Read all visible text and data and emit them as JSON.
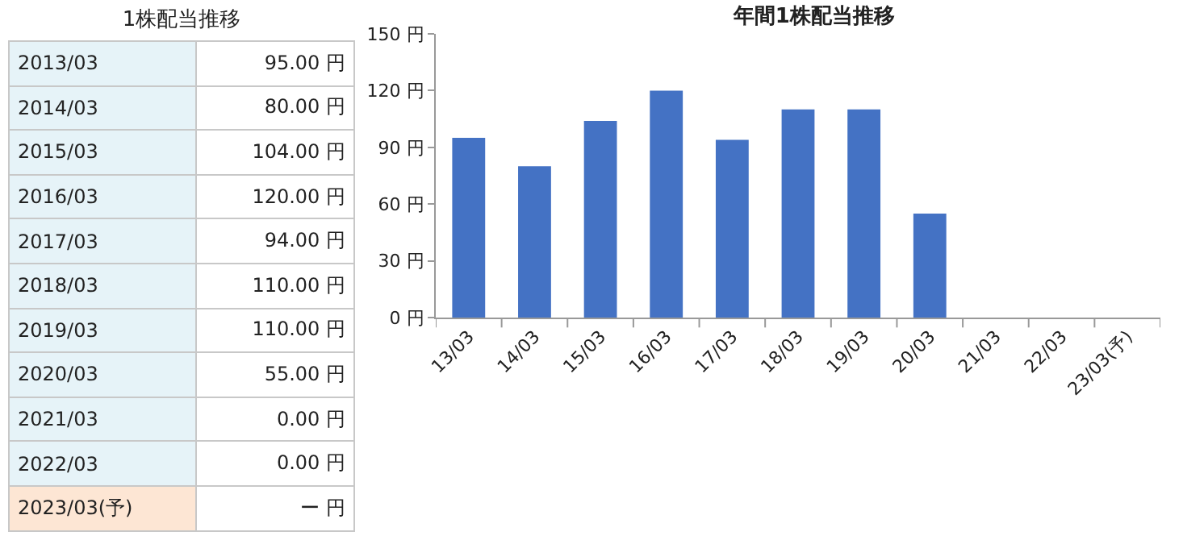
{
  "chart_data": [
    {
      "type": "other",
      "title": "1株配当推移",
      "categories": [
        "2013/03",
        "2014/03",
        "2015/03",
        "2016/03",
        "2017/03",
        "2018/03",
        "2019/03",
        "2020/03",
        "2021/03",
        "2022/03",
        "2023/03(予)"
      ],
      "values": [
        95,
        80,
        104,
        120,
        94,
        110,
        110,
        55,
        0,
        0,
        null
      ],
      "value_labels": [
        "95.00 円",
        "80.00 円",
        "104.00 円",
        "120.00 円",
        "94.00 円",
        "110.00 円",
        "110.00 円",
        "55.00 円",
        "0.00 円",
        "0.00 円",
        "ー 円"
      ],
      "colors": [
        "#e6f3f8",
        "#e6f3f8",
        "#e6f3f8",
        "#e6f3f8",
        "#e6f3f8",
        "#e6f3f8",
        "#e6f3f8",
        "#e6f3f8",
        "#e6f3f8",
        "#e6f3f8",
        "#fde6d4"
      ]
    },
    {
      "type": "bar",
      "title": "年間1株配当推移",
      "categories": [
        "13/03",
        "14/03",
        "15/03",
        "16/03",
        "17/03",
        "18/03",
        "19/03",
        "20/03",
        "21/03",
        "22/03",
        "23/03(予)"
      ],
      "values": [
        95,
        80,
        104,
        120,
        94,
        110,
        110,
        55,
        0,
        0,
        null
      ],
      "color": "#4472c4",
      "ylim": [
        0,
        150
      ],
      "yticks": [
        {
          "value": 0,
          "label": "0 円"
        },
        {
          "value": 30,
          "label": "30 円"
        },
        {
          "value": 60,
          "label": "60 円"
        },
        {
          "value": 90,
          "label": "90 円"
        },
        {
          "value": 120,
          "label": "120 円"
        },
        {
          "value": 150,
          "label": "150 円"
        }
      ],
      "grid": false
    }
  ]
}
